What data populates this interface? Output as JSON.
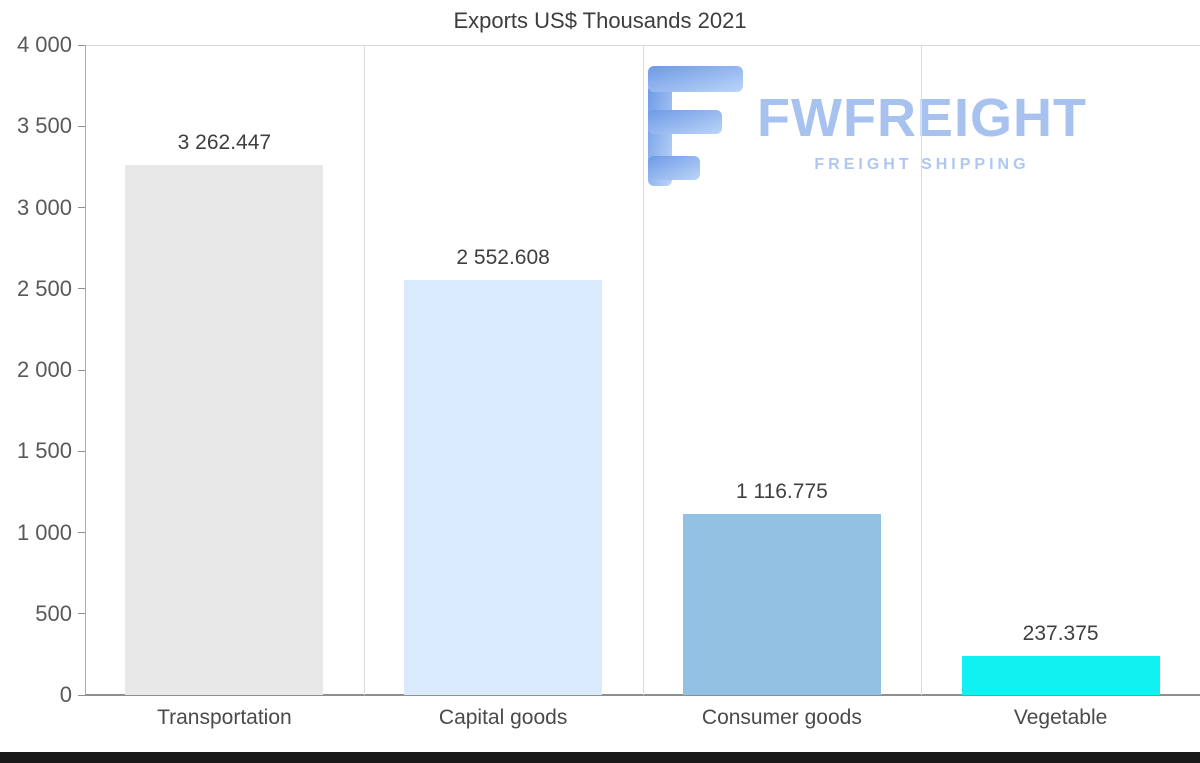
{
  "page": {
    "background": "#ffffff",
    "footer_bar_color": "#181818"
  },
  "logo": {
    "name": "FWFREIGHT",
    "tagline": "FREIGHT SHIPPING",
    "text_color": "#a7c2ef",
    "icon": "fwfreight-f-icon",
    "icon_gradient": [
      "#6d99e6",
      "#bcd5f8"
    ]
  },
  "chart_data": {
    "type": "bar",
    "title": "Exports US$ Thousands 2021",
    "categories": [
      "Transportation",
      "Capital goods",
      "Consumer goods",
      "Vegetable"
    ],
    "values": [
      3262.447,
      2552.608,
      1116.775,
      237.375
    ],
    "value_labels": [
      "3 262.447",
      "2 552.608",
      "1 116.775",
      "237.375"
    ],
    "bar_colors": [
      "#e8e8e8",
      "#d8eafb",
      "#93c1e4",
      "#10f2f2"
    ],
    "xlabel": "",
    "ylabel": "",
    "ylim": [
      0,
      4000
    ],
    "yticks": [
      0,
      500,
      1000,
      1500,
      2000,
      2500,
      3000,
      3500,
      4000
    ],
    "ytick_labels": [
      "0",
      "500",
      "1 000",
      "1 500",
      "2 000",
      "2 500",
      "3 000",
      "3 500",
      "4 000"
    ],
    "grid": "vertical category separators and top border only",
    "legend": "none"
  }
}
